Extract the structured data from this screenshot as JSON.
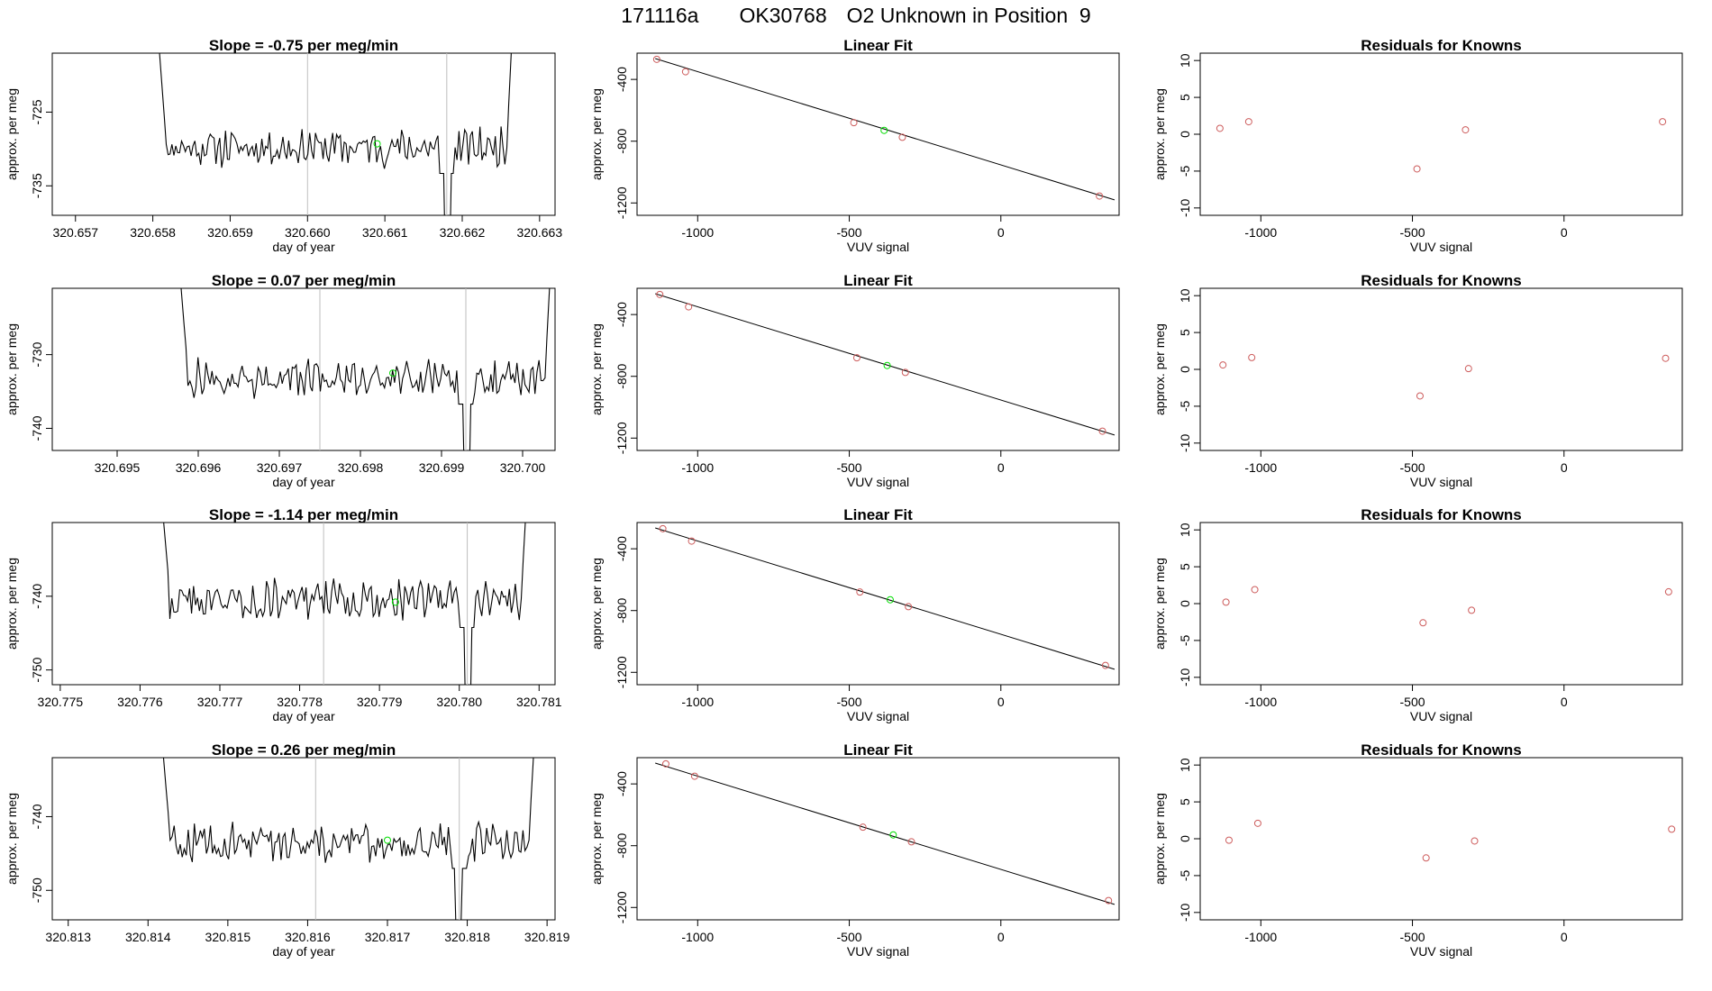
{
  "page": {
    "title_parts": [
      "171116a",
      "OK30768",
      "O2 Unknown in Position  9"
    ]
  },
  "colors": {
    "line": "#000000",
    "known_point": "#cd5c5c",
    "unknown_point": "#00dd00",
    "divider": "#bebebe",
    "frame": "#000000"
  },
  "chart_data": [
    {
      "panel": "time-series-1",
      "type": "line",
      "title": "Slope =  -0.75  per meg/min",
      "xlabel": "day of year",
      "ylabel": "approx. per meg",
      "xlim": [
        320.6567,
        320.6632
      ],
      "ylim": [
        -739,
        -717
      ],
      "xticks": [
        "320.657",
        "320.658",
        "320.659",
        "320.660",
        "320.661",
        "320.662",
        "320.663"
      ],
      "xtick_values": [
        320.657,
        320.658,
        320.659,
        320.66,
        320.661,
        320.662,
        320.663
      ],
      "yticks": [
        "-725",
        "-735"
      ],
      "ytick_values": [
        -725,
        -735
      ],
      "x_start": 320.658,
      "x_end": 320.6627,
      "level": -729.8,
      "noise": 1.6,
      "dividers": [
        320.66,
        320.6618
      ],
      "dips": [
        [
          320.6618,
          -741
        ]
      ],
      "unknown_point": [
        320.6609,
        -729.3
      ],
      "seed": 11
    },
    {
      "panel": "linear-fit-1",
      "type": "scatter",
      "title": "Linear Fit",
      "xlabel": "VUV signal",
      "ylabel": "approx. per meg",
      "xlim": [
        -1200,
        390
      ],
      "ylim": [
        -1280,
        -230
      ],
      "xticks": [
        "-1000",
        "-500",
        "0"
      ],
      "xtick_values": [
        -1000,
        -500,
        0
      ],
      "yticks": [
        "-400",
        "-800",
        "-1200"
      ],
      "ytick_values": [
        -400,
        -800,
        -1200
      ],
      "known": [
        [
          -1135,
          -270
        ],
        [
          -1040,
          -350
        ],
        [
          -485,
          -680
        ],
        [
          -325,
          -775
        ],
        [
          325,
          -1155
        ]
      ],
      "unknown": [
        [
          -385,
          -730
        ]
      ],
      "fit_line": [
        [
          -1140,
          -265
        ],
        [
          375,
          -1180
        ]
      ]
    },
    {
      "panel": "residuals-1",
      "type": "scatter",
      "title": "Residuals for Knowns",
      "xlabel": "VUV signal",
      "ylabel": "approx. per meg",
      "xlim": [
        -1200,
        390
      ],
      "ylim": [
        -11,
        11
      ],
      "xticks": [
        "-1000",
        "-500",
        "0"
      ],
      "xtick_values": [
        -1000,
        -500,
        0
      ],
      "yticks": [
        "10",
        "5",
        "0",
        "-5",
        "-10"
      ],
      "ytick_values": [
        10,
        5,
        0,
        -5,
        -10
      ],
      "points": [
        [
          -1135,
          0.8
        ],
        [
          -1040,
          1.7
        ],
        [
          -485,
          -4.7
        ],
        [
          -325,
          0.6
        ],
        [
          325,
          1.7
        ]
      ]
    },
    {
      "panel": "time-series-2",
      "type": "line",
      "title": "Slope =  0.07  per meg/min",
      "xlabel": "day of year",
      "ylabel": "approx. per meg",
      "xlim": [
        320.6942,
        320.7004
      ],
      "ylim": [
        -743,
        -721
      ],
      "xticks": [
        "320.695",
        "320.696",
        "320.697",
        "320.698",
        "320.699",
        "320.700"
      ],
      "xtick_values": [
        320.695,
        320.696,
        320.697,
        320.698,
        320.699,
        320.7
      ],
      "yticks": [
        "-730",
        "-740"
      ],
      "ytick_values": [
        -730,
        -740
      ],
      "x_start": 320.6957,
      "x_end": 320.7004,
      "level": -733.2,
      "noise": 1.6,
      "dividers": [
        320.6975,
        320.6993
      ],
      "dips": [
        [
          320.6993,
          -744
        ]
      ],
      "unknown_point": [
        320.6984,
        -732.5
      ],
      "seed": 27
    },
    {
      "panel": "linear-fit-2",
      "type": "scatter",
      "title": "Linear Fit",
      "xlabel": "VUV signal",
      "ylabel": "approx. per meg",
      "xlim": [
        -1200,
        390
      ],
      "ylim": [
        -1280,
        -230
      ],
      "xticks": [
        "-1000",
        "-500",
        "0"
      ],
      "xtick_values": [
        -1000,
        -500,
        0
      ],
      "yticks": [
        "-400",
        "-800",
        "-1200"
      ],
      "ytick_values": [
        -400,
        -800,
        -1200
      ],
      "known": [
        [
          -1125,
          -270
        ],
        [
          -1030,
          -350
        ],
        [
          -475,
          -680
        ],
        [
          -315,
          -775
        ],
        [
          335,
          -1155
        ]
      ],
      "unknown": [
        [
          -375,
          -730
        ]
      ],
      "fit_line": [
        [
          -1140,
          -265
        ],
        [
          375,
          -1180
        ]
      ]
    },
    {
      "panel": "residuals-2",
      "type": "scatter",
      "title": "Residuals for Knowns",
      "xlabel": "VUV signal",
      "ylabel": "approx. per meg",
      "xlim": [
        -1200,
        390
      ],
      "ylim": [
        -11,
        11
      ],
      "xticks": [
        "-1000",
        "-500",
        "0"
      ],
      "xtick_values": [
        -1000,
        -500,
        0
      ],
      "yticks": [
        "10",
        "5",
        "0",
        "-5",
        "-10"
      ],
      "ytick_values": [
        10,
        5,
        0,
        -5,
        -10
      ],
      "points": [
        [
          -1125,
          0.6
        ],
        [
          -1030,
          1.6
        ],
        [
          -475,
          -3.6
        ],
        [
          -315,
          0.1
        ],
        [
          335,
          1.5
        ]
      ]
    },
    {
      "panel": "time-series-3",
      "type": "line",
      "title": "Slope =  -1.14  per meg/min",
      "xlabel": "day of year",
      "ylabel": "approx. per meg",
      "xlim": [
        320.7749,
        320.7812
      ],
      "ylim": [
        -752,
        -730
      ],
      "xticks": [
        "320.775",
        "320.776",
        "320.777",
        "320.778",
        "320.779",
        "320.780",
        "320.781"
      ],
      "xtick_values": [
        320.775,
        320.776,
        320.777,
        320.778,
        320.779,
        320.78,
        320.781
      ],
      "yticks": [
        "-740",
        "-750"
      ],
      "ytick_values": [
        -740,
        -750
      ],
      "x_start": 320.7762,
      "x_end": 320.7809,
      "level": -740.5,
      "noise": 1.7,
      "dividers": [
        320.7783,
        320.7801
      ],
      "dips": [
        [
          320.7801,
          -753
        ]
      ],
      "unknown_point": [
        320.7792,
        -740.8
      ],
      "seed": 43
    },
    {
      "panel": "linear-fit-3",
      "type": "scatter",
      "title": "Linear Fit",
      "xlabel": "VUV signal",
      "ylabel": "approx. per meg",
      "xlim": [
        -1200,
        390
      ],
      "ylim": [
        -1280,
        -230
      ],
      "xticks": [
        "-1000",
        "-500",
        "0"
      ],
      "xtick_values": [
        -1000,
        -500,
        0
      ],
      "yticks": [
        "-400",
        "-800",
        "-1200"
      ],
      "ytick_values": [
        -400,
        -800,
        -1200
      ],
      "known": [
        [
          -1115,
          -270
        ],
        [
          -1020,
          -350
        ],
        [
          -465,
          -680
        ],
        [
          -305,
          -775
        ],
        [
          345,
          -1155
        ]
      ],
      "unknown": [
        [
          -365,
          -730
        ]
      ],
      "fit_line": [
        [
          -1140,
          -265
        ],
        [
          375,
          -1180
        ]
      ]
    },
    {
      "panel": "residuals-3",
      "type": "scatter",
      "title": "Residuals for Knowns",
      "xlabel": "VUV signal",
      "ylabel": "approx. per meg",
      "xlim": [
        -1200,
        390
      ],
      "ylim": [
        -11,
        11
      ],
      "xticks": [
        "-1000",
        "-500",
        "0"
      ],
      "xtick_values": [
        -1000,
        -500,
        0
      ],
      "yticks": [
        "10",
        "5",
        "0",
        "-5",
        "-10"
      ],
      "ytick_values": [
        10,
        5,
        0,
        -5,
        -10
      ],
      "points": [
        [
          -1115,
          0.2
        ],
        [
          -1020,
          1.9
        ],
        [
          -465,
          -2.6
        ],
        [
          -305,
          -0.9
        ],
        [
          345,
          1.6
        ]
      ]
    },
    {
      "panel": "time-series-4",
      "type": "line",
      "title": "Slope =  0.26  per meg/min",
      "xlabel": "day of year",
      "ylabel": "approx. per meg",
      "xlim": [
        320.8128,
        320.8191
      ],
      "ylim": [
        -754,
        -732
      ],
      "xticks": [
        "320.813",
        "320.814",
        "320.815",
        "320.816",
        "320.817",
        "320.818",
        "320.819"
      ],
      "xtick_values": [
        320.813,
        320.814,
        320.815,
        320.816,
        320.817,
        320.818,
        320.819
      ],
      "yticks": [
        "-740",
        "-750"
      ],
      "ytick_values": [
        -740,
        -750
      ],
      "x_start": 320.8141,
      "x_end": 320.8189,
      "level": -743.5,
      "noise": 1.6,
      "dividers": [
        320.8161,
        320.8179
      ],
      "dips": [
        [
          320.8179,
          -751.5
        ]
      ],
      "unknown_point": [
        320.817,
        -743.2
      ],
      "seed": 59
    },
    {
      "panel": "linear-fit-4",
      "type": "scatter",
      "title": "Linear Fit",
      "xlabel": "VUV signal",
      "ylabel": "approx. per meg",
      "xlim": [
        -1200,
        390
      ],
      "ylim": [
        -1280,
        -230
      ],
      "xticks": [
        "-1000",
        "-500",
        "0"
      ],
      "xtick_values": [
        -1000,
        -500,
        0
      ],
      "yticks": [
        "-400",
        "-800",
        "-1200"
      ],
      "ytick_values": [
        -400,
        -800,
        -1200
      ],
      "known": [
        [
          -1105,
          -270
        ],
        [
          -1010,
          -350
        ],
        [
          -455,
          -680
        ],
        [
          -295,
          -775
        ],
        [
          355,
          -1155
        ]
      ],
      "unknown": [
        [
          -355,
          -730
        ]
      ],
      "fit_line": [
        [
          -1140,
          -265
        ],
        [
          375,
          -1180
        ]
      ]
    },
    {
      "panel": "residuals-4",
      "type": "scatter",
      "title": "Residuals for Knowns",
      "xlabel": "VUV signal",
      "ylabel": "approx. per meg",
      "xlim": [
        -1200,
        390
      ],
      "ylim": [
        -11,
        11
      ],
      "xticks": [
        "-1000",
        "-500",
        "0"
      ],
      "xtick_values": [
        -1000,
        -500,
        0
      ],
      "yticks": [
        "10",
        "5",
        "0",
        "-5",
        "-10"
      ],
      "ytick_values": [
        10,
        5,
        0,
        -5,
        -10
      ],
      "points": [
        [
          -1105,
          -0.2
        ],
        [
          -1010,
          2.1
        ],
        [
          -455,
          -2.6
        ],
        [
          -295,
          -0.3
        ],
        [
          355,
          1.3
        ]
      ]
    }
  ]
}
